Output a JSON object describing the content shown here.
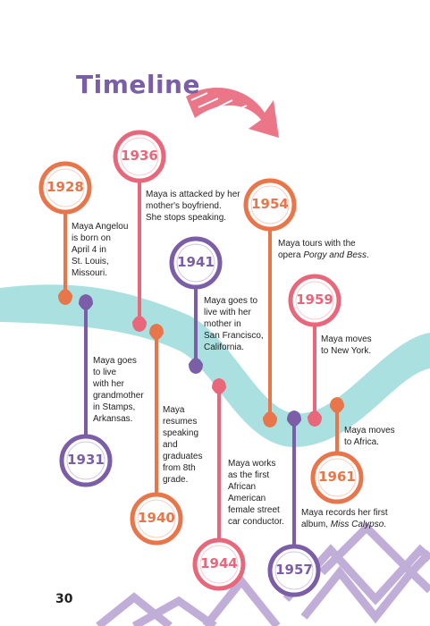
{
  "page": {
    "title": "Timeline",
    "page_number": "30",
    "colors": {
      "title": "#7b5ea7",
      "orange": "#e8764a",
      "pink": "#e8677a",
      "purple": "#7b5ea7",
      "river": "#8fd6d6",
      "zigzag": "#b6a0d2"
    }
  },
  "events": [
    {
      "year": "1928",
      "color": "orange",
      "text_lines": [
        "Maya Angelou",
        "is born on",
        "April 4 in",
        "St. Louis,",
        "Missouri."
      ]
    },
    {
      "year": "1931",
      "color": "purple",
      "text_lines": [
        "Maya goes",
        "to live",
        "with her",
        "grandmother",
        "in Stamps,",
        "Arkansas."
      ]
    },
    {
      "year": "1936",
      "color": "pink",
      "text_lines": [
        "Maya is attacked by her",
        "mother's boyfriend.",
        "She stops speaking."
      ]
    },
    {
      "year": "1940",
      "color": "orange",
      "text_lines": [
        "Maya",
        "resumes",
        "speaking",
        "and",
        "graduates",
        "from 8th",
        "grade."
      ]
    },
    {
      "year": "1941",
      "color": "purple",
      "text_lines": [
        "Maya goes to",
        "live with her",
        "mother in",
        "San Francisco,",
        "California."
      ]
    },
    {
      "year": "1944",
      "color": "pink",
      "text_lines": [
        "Maya works",
        "as the first",
        "African",
        "American",
        "female street",
        "car conductor."
      ]
    },
    {
      "year": "1954",
      "color": "orange",
      "text_lines": [
        "Maya tours with the"
      ],
      "text_line2_plain": "opera ",
      "text_line2_italic": "Porgy and Bess",
      "text_line2_end": "."
    },
    {
      "year": "1957",
      "color": "purple",
      "text_lines": [
        "Maya records her first"
      ],
      "text_line2_plain": "album, ",
      "text_line2_italic": "Miss Calypso",
      "text_line2_end": "."
    },
    {
      "year": "1959",
      "color": "pink",
      "text_lines": [
        "Maya moves",
        "to New York."
      ]
    },
    {
      "year": "1961",
      "color": "orange",
      "text_lines": [
        "Maya moves",
        "to Africa."
      ]
    }
  ]
}
